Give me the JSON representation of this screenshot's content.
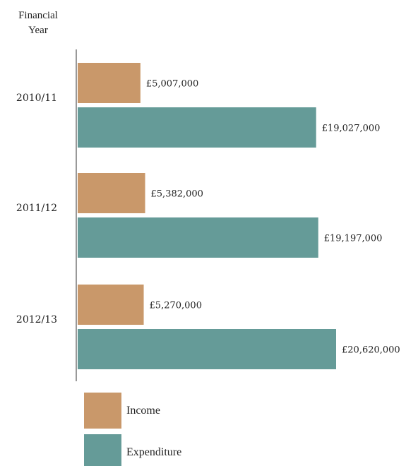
{
  "chart_data": {
    "type": "bar",
    "orientation": "horizontal",
    "y_axis_title": [
      "Financial",
      "Year"
    ],
    "categories": [
      "2010/11",
      "2011/12",
      "2012/13"
    ],
    "series": [
      {
        "name": "Income",
        "color": "#C9986A",
        "values": [
          5007000,
          5382000,
          5270000
        ],
        "labels": [
          "£5,007,000",
          "£5,382,000",
          "£5,270,000"
        ]
      },
      {
        "name": "Expenditure",
        "color": "#659B98",
        "values": [
          19027000,
          19197000,
          20620000
        ],
        "labels": [
          "£19,027,000",
          "£19,197,000",
          "£20,620,000"
        ]
      }
    ],
    "xlim": [
      0,
      20620000
    ],
    "grid": false,
    "legend_position": "bottom-left"
  }
}
